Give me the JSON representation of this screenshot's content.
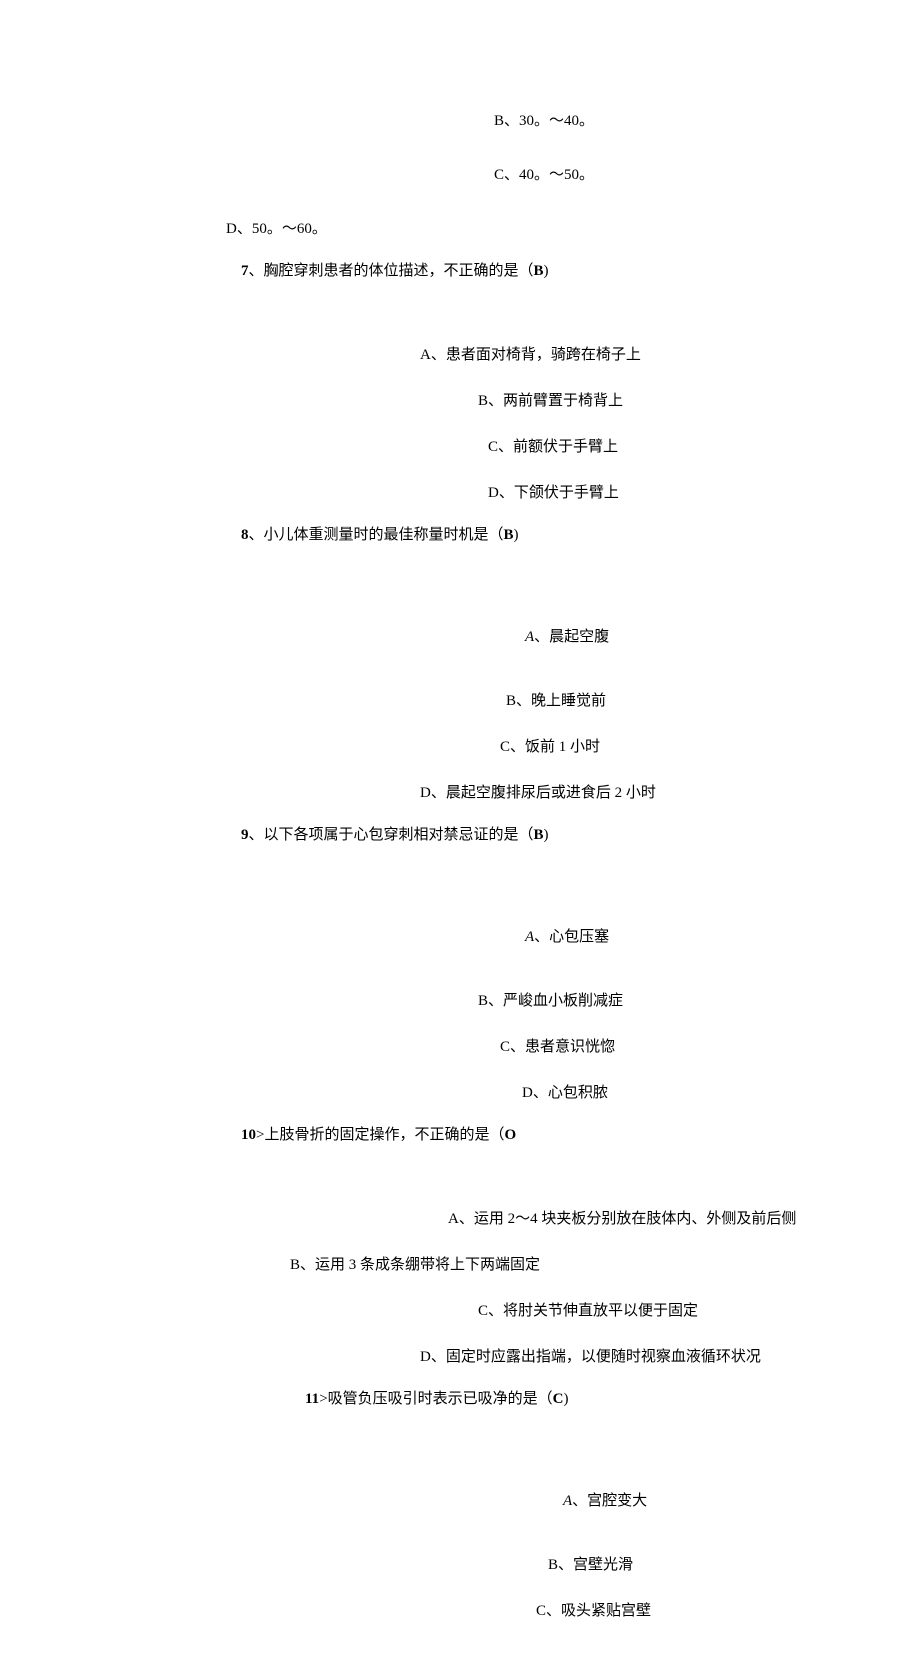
{
  "colors": {
    "background": "#ffffff",
    "text": "#000000"
  },
  "typography": {
    "font_family": "SimSun",
    "font_size_pt": 11
  },
  "q6": {
    "opt_b": "B、30。～40。",
    "opt_c": "C、40。～50。",
    "opt_d": "D、50。～60。"
  },
  "q7": {
    "num": "7",
    "sep": "、",
    "stem_a": "胸腔穿刺患者的体位描述，不正确的是（",
    "ans": "B",
    "stem_b": ")",
    "opt_a": "A、患者面对椅背，骑跨在椅子上",
    "opt_b": "B、两前臂置于椅背上",
    "opt_c": "C、前额伏于手臂上",
    "opt_d": "D、下颌伏于手臂上"
  },
  "q8": {
    "num": "8",
    "sep": "、",
    "stem_a": "小儿体重测量时的最佳称量时机是（",
    "ans": "B",
    "stem_b": ")",
    "opt_a_label": "A",
    "opt_a_text": "、晨起空腹",
    "opt_b": "B、晚上睡觉前",
    "opt_c": "C、饭前 1 小时",
    "opt_d": "D、晨起空腹排尿后或进食后 2 小时"
  },
  "q9": {
    "num": "9",
    "sep": "、",
    "stem_a": "以下各项属于心包穿刺相对禁忌证的是（",
    "ans": "B",
    "stem_b": ")",
    "opt_a_label": "A",
    "opt_a_text": "、心包压塞",
    "opt_b": "B、严峻血小板削减症",
    "opt_c": "C、患者意识恍惚",
    "opt_d": "D、心包积脓"
  },
  "q10": {
    "num": "10",
    "sep": ">",
    "stem_a": "上肢骨折的固定操作，不正确的是（",
    "ans": "O",
    "opt_a": "A、运用 2〜4 块夹板分别放在肢体内、外侧及前后侧",
    "opt_b": "B、运用 3 条成条绷带将上下两端固定",
    "opt_c": "C、将肘关节伸直放平以便于固定",
    "opt_d": "D、固定时应露出指端，以便随时视察血液循环状况"
  },
  "q11": {
    "num": "11",
    "sep": ">",
    "stem_a": "吸管负压吸引时表示已吸净的是（",
    "ans": "C",
    "stem_b": ")",
    "opt_a_label": "A",
    "opt_a_text": "、宫腔变大",
    "opt_b": "B、宫壁光滑",
    "opt_c": "C、吸头紧贴宫壁"
  }
}
